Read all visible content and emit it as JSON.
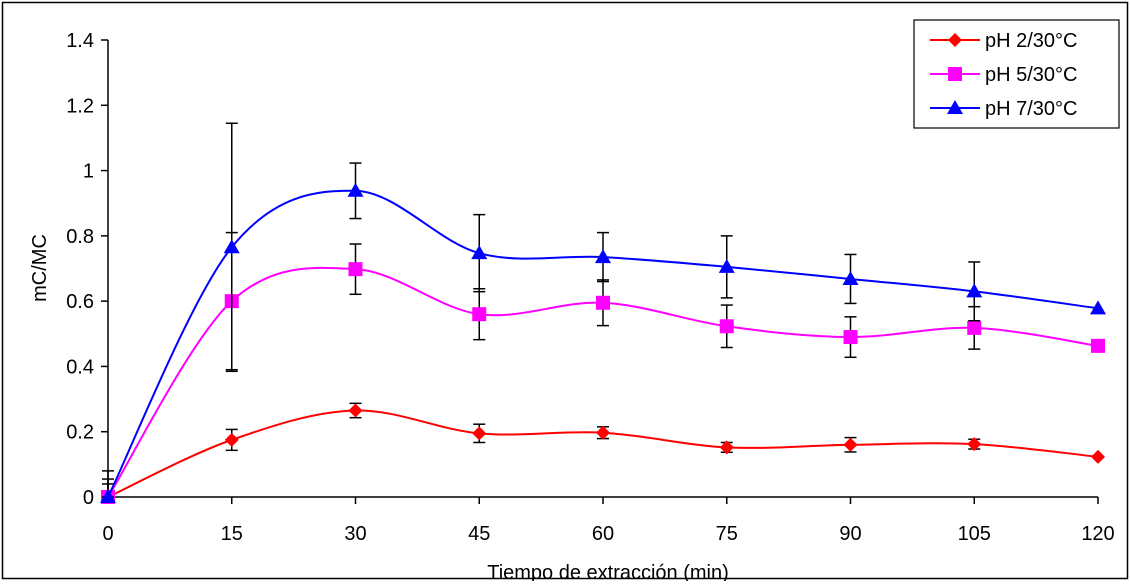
{
  "chart_data": {
    "type": "line",
    "title": "",
    "xlabel": "Tiempo de extracción (min)",
    "ylabel": "mC/MC",
    "x": [
      0,
      15,
      30,
      45,
      60,
      75,
      90,
      105,
      120
    ],
    "x_ticks": [
      "0",
      "15",
      "30",
      "45",
      "60",
      "75",
      "90",
      "105",
      "120"
    ],
    "y_ticks": [
      "0",
      "0.2",
      "0.4",
      "0.6",
      "0.8",
      "1",
      "1.2",
      "1.4"
    ],
    "xlim": [
      0,
      120
    ],
    "ylim": [
      0,
      1.4
    ],
    "grid": false,
    "legend_position": "top-right",
    "smoothed": true,
    "series": [
      {
        "name": "pH 2/30°C",
        "color": "#ff0000",
        "marker": "diamond",
        "values": [
          0.0,
          0.175,
          0.265,
          0.195,
          0.197,
          0.152,
          0.16,
          0.162,
          0.123
        ],
        "error": [
          0.08,
          0.032,
          0.022,
          0.028,
          0.018,
          0.015,
          0.022,
          0.015,
          0
        ]
      },
      {
        "name": "pH 5/30°C",
        "color": "#ff00ff",
        "marker": "square",
        "values": [
          0.0,
          0.6,
          0.698,
          0.56,
          0.595,
          0.523,
          0.49,
          0.518,
          0.463
        ],
        "error": [
          0.055,
          0.21,
          0.077,
          0.078,
          0.07,
          0.065,
          0.062,
          0.065,
          0
        ]
      },
      {
        "name": "pH 7/30°C",
        "color": "#0000ff",
        "marker": "triangle",
        "values": [
          0.0,
          0.765,
          0.938,
          0.747,
          0.735,
          0.705,
          0.668,
          0.63,
          0.578
        ],
        "error": [
          0.04,
          0.38,
          0.085,
          0.118,
          0.075,
          0.095,
          0.075,
          0.09,
          0
        ]
      }
    ]
  }
}
